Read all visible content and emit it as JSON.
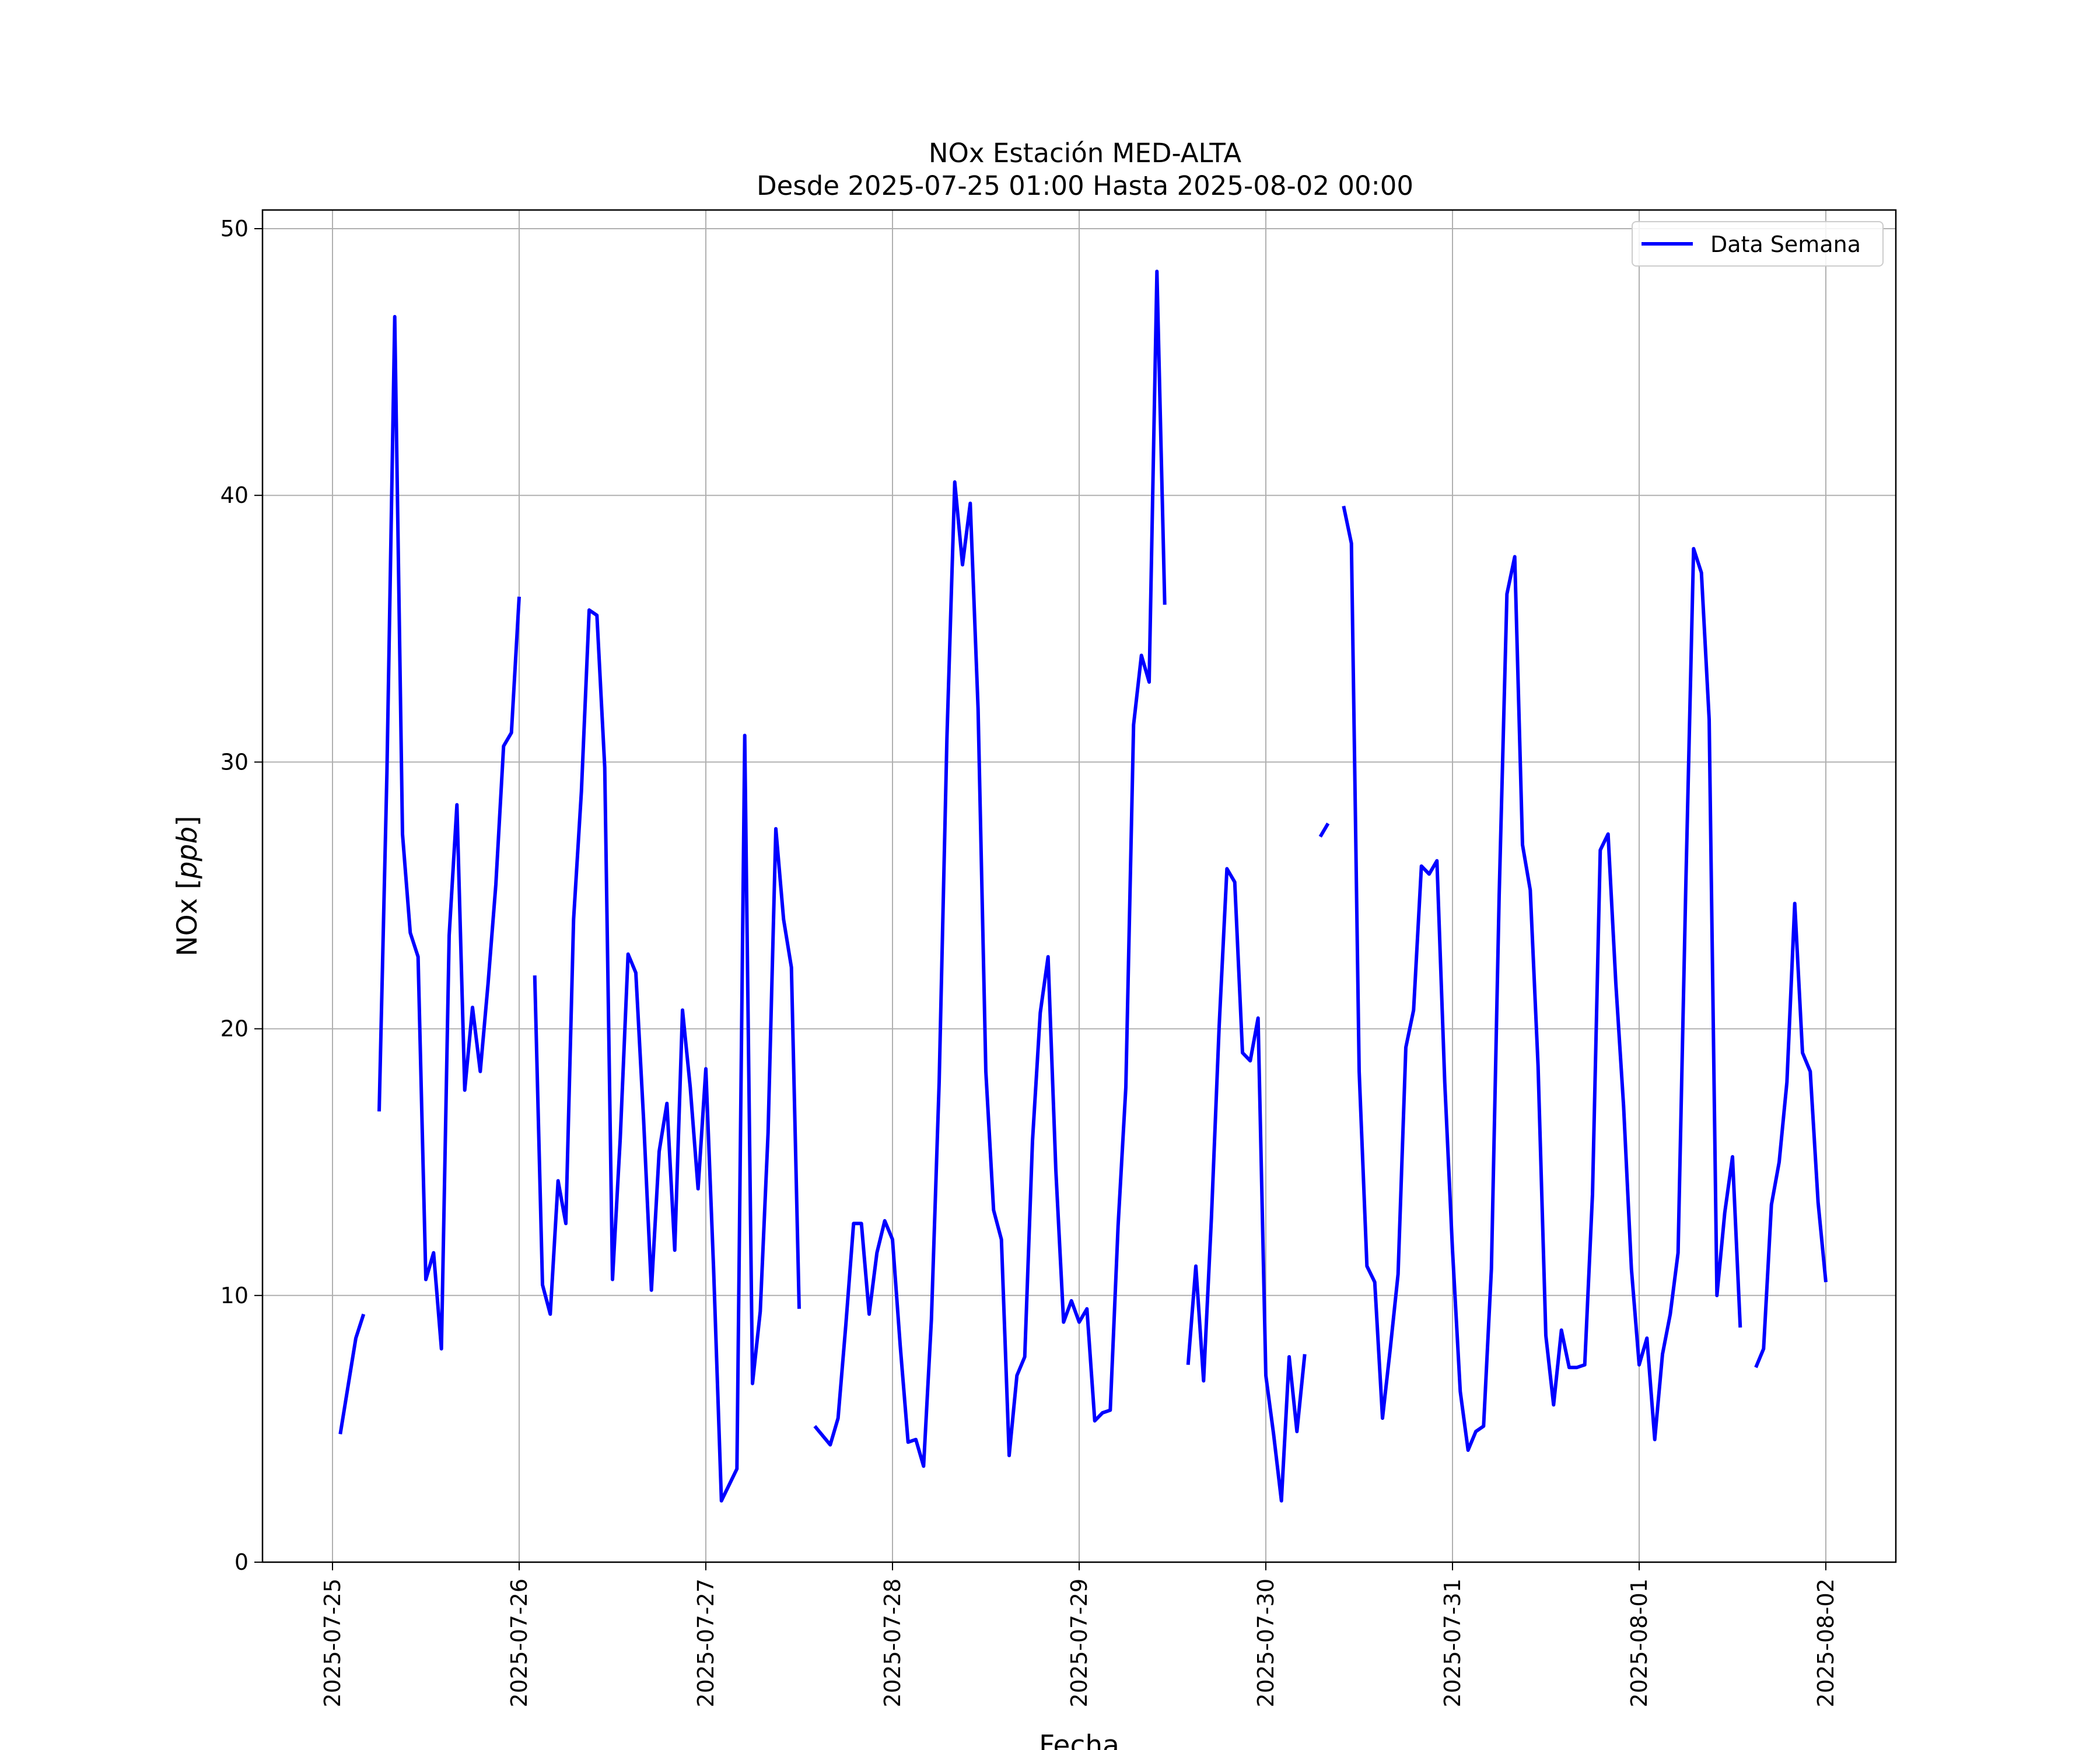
{
  "chart_data": {
    "type": "line",
    "title_line1": "NOx Estación MED-ALTA",
    "title_line2": "Desde 2025-07-25 01:00 Hasta 2025-08-02 00:00",
    "xlabel": "Fecha",
    "ylabel_prefix": "NOx [",
    "ylabel_unit": "ppb",
    "ylabel_suffix": "]",
    "ylim": [
      0,
      50.7
    ],
    "xlim": [
      "2025-07-24 15:00",
      "2025-08-02 09:00"
    ],
    "yticks": [
      "0",
      "10",
      "20",
      "30",
      "40",
      "50"
    ],
    "xticks": [
      "2025-07-25",
      "2025-07-26",
      "2025-07-27",
      "2025-07-28",
      "2025-07-29",
      "2025-07-30",
      "2025-07-31",
      "2025-08-01",
      "2025-08-02"
    ],
    "grid": true,
    "legend_position": "top-right",
    "series": [
      {
        "name": "Data Semana",
        "color": "#0000ff",
        "segments": [
          [
            [
              "2025-07-25 01:00",
              4.8
            ],
            [
              "2025-07-25 03:00",
              8.4
            ],
            [
              "2025-07-25 04:00",
              9.3
            ]
          ],
          [
            [
              "2025-07-25 06:00",
              16.9
            ],
            [
              "2025-07-25 07:00",
              29.6
            ],
            [
              "2025-07-25 08:00",
              46.7
            ],
            [
              "2025-07-25 09:00",
              27.3
            ],
            [
              "2025-07-25 10:00",
              23.6
            ],
            [
              "2025-07-25 11:00",
              22.7
            ],
            [
              "2025-07-25 12:00",
              10.6
            ],
            [
              "2025-07-25 13:00",
              11.6
            ],
            [
              "2025-07-25 14:00",
              8.0
            ],
            [
              "2025-07-25 15:00",
              23.5
            ],
            [
              "2025-07-25 16:00",
              28.4
            ],
            [
              "2025-07-25 17:00",
              17.7
            ],
            [
              "2025-07-25 18:00",
              20.8
            ],
            [
              "2025-07-25 19:00",
              18.4
            ],
            [
              "2025-07-25 20:00",
              21.7
            ],
            [
              "2025-07-25 21:00",
              25.4
            ],
            [
              "2025-07-25 22:00",
              30.6
            ],
            [
              "2025-07-25 23:00",
              31.1
            ],
            [
              "2025-07-26 00:00",
              36.2
            ]
          ],
          [
            [
              "2025-07-26 02:00",
              22.0
            ],
            [
              "2025-07-26 03:00",
              10.4
            ],
            [
              "2025-07-26 04:00",
              9.3
            ],
            [
              "2025-07-26 05:00",
              14.3
            ],
            [
              "2025-07-26 06:00",
              12.7
            ],
            [
              "2025-07-26 07:00",
              24.1
            ],
            [
              "2025-07-26 08:00",
              28.9
            ],
            [
              "2025-07-26 09:00",
              35.7
            ],
            [
              "2025-07-26 10:00",
              35.5
            ],
            [
              "2025-07-26 11:00",
              29.8
            ],
            [
              "2025-07-26 12:00",
              10.6
            ],
            [
              "2025-07-26 13:00",
              15.9
            ],
            [
              "2025-07-26 14:00",
              22.8
            ],
            [
              "2025-07-26 15:00",
              22.1
            ],
            [
              "2025-07-26 16:00",
              16.6
            ],
            [
              "2025-07-26 17:00",
              10.2
            ],
            [
              "2025-07-26 18:00",
              15.4
            ],
            [
              "2025-07-26 19:00",
              17.2
            ],
            [
              "2025-07-26 20:00",
              11.7
            ],
            [
              "2025-07-26 21:00",
              20.7
            ],
            [
              "2025-07-26 22:00",
              17.8
            ],
            [
              "2025-07-26 23:00",
              14.0
            ],
            [
              "2025-07-27 00:00",
              18.5
            ],
            [
              "2025-07-27 01:00",
              11.0
            ],
            [
              "2025-07-27 02:00",
              2.3
            ],
            [
              "2025-07-27 04:00",
              3.5
            ],
            [
              "2025-07-27 05:00",
              31.0
            ],
            [
              "2025-07-27 06:00",
              6.7
            ],
            [
              "2025-07-27 07:00",
              9.4
            ],
            [
              "2025-07-27 08:00",
              16.1
            ],
            [
              "2025-07-27 09:00",
              27.5
            ],
            [
              "2025-07-27 10:00",
              24.1
            ],
            [
              "2025-07-27 11:00",
              22.3
            ],
            [
              "2025-07-27 12:00",
              9.5
            ]
          ],
          [
            [
              "2025-07-27 14:00",
              5.1
            ],
            [
              "2025-07-27 16:00",
              4.4
            ],
            [
              "2025-07-27 17:00",
              5.4
            ],
            [
              "2025-07-27 18:00",
              8.9
            ],
            [
              "2025-07-27 19:00",
              12.7
            ],
            [
              "2025-07-27 20:00",
              12.7
            ],
            [
              "2025-07-27 21:00",
              9.3
            ],
            [
              "2025-07-27 22:00",
              11.6
            ],
            [
              "2025-07-27 23:00",
              12.8
            ],
            [
              "2025-07-28 00:00",
              12.1
            ],
            [
              "2025-07-28 01:00",
              8.1
            ],
            [
              "2025-07-28 02:00",
              4.5
            ],
            [
              "2025-07-28 03:00",
              4.6
            ],
            [
              "2025-07-28 04:00",
              3.6
            ],
            [
              "2025-07-28 05:00",
              9.1
            ],
            [
              "2025-07-28 06:00",
              18.0
            ],
            [
              "2025-07-28 07:00",
              30.9
            ],
            [
              "2025-07-28 08:00",
              40.5
            ],
            [
              "2025-07-28 09:00",
              37.4
            ],
            [
              "2025-07-28 10:00",
              39.7
            ],
            [
              "2025-07-28 11:00",
              32.0
            ],
            [
              "2025-07-28 12:00",
              18.4
            ],
            [
              "2025-07-28 13:00",
              13.2
            ],
            [
              "2025-07-28 14:00",
              12.1
            ],
            [
              "2025-07-28 15:00",
              4.0
            ],
            [
              "2025-07-28 16:00",
              7.0
            ],
            [
              "2025-07-28 17:00",
              7.7
            ],
            [
              "2025-07-28 18:00",
              15.8
            ],
            [
              "2025-07-28 19:00",
              20.6
            ],
            [
              "2025-07-28 20:00",
              22.7
            ],
            [
              "2025-07-28 21:00",
              14.7
            ],
            [
              "2025-07-28 22:00",
              9.0
            ],
            [
              "2025-07-28 23:00",
              9.8
            ],
            [
              "2025-07-29 00:00",
              9.0
            ],
            [
              "2025-07-29 01:00",
              9.5
            ],
            [
              "2025-07-29 02:00",
              5.3
            ],
            [
              "2025-07-29 03:00",
              5.6
            ],
            [
              "2025-07-29 04:00",
              5.7
            ],
            [
              "2025-07-29 05:00",
              12.6
            ],
            [
              "2025-07-29 06:00",
              17.8
            ],
            [
              "2025-07-29 07:00",
              31.4
            ],
            [
              "2025-07-29 08:00",
              34.0
            ],
            [
              "2025-07-29 09:00",
              33.0
            ],
            [
              "2025-07-29 10:00",
              48.4
            ],
            [
              "2025-07-29 11:00",
              35.9
            ]
          ],
          [
            [
              "2025-07-29 14:00",
              7.4
            ],
            [
              "2025-07-29 15:00",
              11.1
            ],
            [
              "2025-07-29 16:00",
              6.8
            ],
            [
              "2025-07-29 17:00",
              12.9
            ],
            [
              "2025-07-29 18:00",
              20.1
            ],
            [
              "2025-07-29 19:00",
              26.0
            ],
            [
              "2025-07-29 20:00",
              25.5
            ],
            [
              "2025-07-29 21:00",
              19.1
            ],
            [
              "2025-07-29 22:00",
              18.8
            ],
            [
              "2025-07-29 23:00",
              20.4
            ],
            [
              "2025-07-30 00:00",
              7.0
            ],
            [
              "2025-07-30 01:00",
              4.8
            ],
            [
              "2025-07-30 02:00",
              2.3
            ],
            [
              "2025-07-30 03:00",
              7.7
            ],
            [
              "2025-07-30 04:00",
              4.9
            ],
            [
              "2025-07-30 05:00",
              7.8
            ]
          ],
          [
            [
              "2025-07-30 07:00",
              27.2
            ],
            [
              "2025-07-30 08:00",
              27.7
            ]
          ],
          [
            [
              "2025-07-30 10:00",
              39.6
            ],
            [
              "2025-07-30 11:00",
              38.2
            ],
            [
              "2025-07-30 12:00",
              18.4
            ],
            [
              "2025-07-30 13:00",
              11.1
            ],
            [
              "2025-07-30 14:00",
              10.5
            ],
            [
              "2025-07-30 15:00",
              5.4
            ],
            [
              "2025-07-30 16:00",
              8.0
            ],
            [
              "2025-07-30 17:00",
              10.8
            ],
            [
              "2025-07-30 18:00",
              19.3
            ],
            [
              "2025-07-30 19:00",
              20.7
            ],
            [
              "2025-07-30 20:00",
              26.1
            ],
            [
              "2025-07-30 21:00",
              25.8
            ],
            [
              "2025-07-30 22:00",
              26.3
            ],
            [
              "2025-07-30 23:00",
              18.0
            ],
            [
              "2025-07-31 00:00",
              11.7
            ],
            [
              "2025-07-31 01:00",
              6.4
            ],
            [
              "2025-07-31 02:00",
              4.2
            ],
            [
              "2025-07-31 03:00",
              4.9
            ],
            [
              "2025-07-31 04:00",
              5.1
            ],
            [
              "2025-07-31 05:00",
              11.0
            ],
            [
              "2025-07-31 06:00",
              25.0
            ],
            [
              "2025-07-31 07:00",
              36.3
            ],
            [
              "2025-07-31 08:00",
              37.7
            ],
            [
              "2025-07-31 09:00",
              26.9
            ],
            [
              "2025-07-31 10:00",
              25.2
            ],
            [
              "2025-07-31 11:00",
              18.6
            ],
            [
              "2025-07-31 12:00",
              8.5
            ],
            [
              "2025-07-31 13:00",
              5.9
            ],
            [
              "2025-07-31 14:00",
              8.7
            ],
            [
              "2025-07-31 15:00",
              7.3
            ],
            [
              "2025-07-31 16:00",
              7.3
            ],
            [
              "2025-07-31 17:00",
              7.4
            ],
            [
              "2025-07-31 18:00",
              13.8
            ],
            [
              "2025-07-31 19:00",
              26.7
            ],
            [
              "2025-07-31 20:00",
              27.3
            ],
            [
              "2025-07-31 21:00",
              21.7
            ],
            [
              "2025-07-31 22:00",
              17.1
            ],
            [
              "2025-07-31 23:00",
              11.0
            ],
            [
              "2025-08-01 00:00",
              7.4
            ],
            [
              "2025-08-01 01:00",
              8.4
            ],
            [
              "2025-08-01 02:00",
              4.6
            ],
            [
              "2025-08-01 03:00",
              7.8
            ],
            [
              "2025-08-01 04:00",
              9.3
            ],
            [
              "2025-08-01 05:00",
              11.6
            ],
            [
              "2025-08-01 06:00",
              25.4
            ],
            [
              "2025-08-01 07:00",
              38.0
            ],
            [
              "2025-08-01 08:00",
              37.1
            ],
            [
              "2025-08-01 09:00",
              31.6
            ],
            [
              "2025-08-01 10:00",
              10.0
            ],
            [
              "2025-08-01 11:00",
              13.1
            ],
            [
              "2025-08-01 12:00",
              15.2
            ],
            [
              "2025-08-01 13:00",
              8.8
            ]
          ],
          [
            [
              "2025-08-01 15:00",
              7.3
            ],
            [
              "2025-08-01 16:00",
              8.0
            ],
            [
              "2025-08-01 17:00",
              13.4
            ],
            [
              "2025-08-01 18:00",
              15.0
            ],
            [
              "2025-08-01 19:00",
              18.0
            ],
            [
              "2025-08-01 20:00",
              24.7
            ],
            [
              "2025-08-01 21:00",
              19.1
            ],
            [
              "2025-08-01 22:00",
              18.4
            ],
            [
              "2025-08-01 23:00",
              13.5
            ],
            [
              "2025-08-02 00:00",
              10.5
            ]
          ]
        ]
      }
    ]
  }
}
